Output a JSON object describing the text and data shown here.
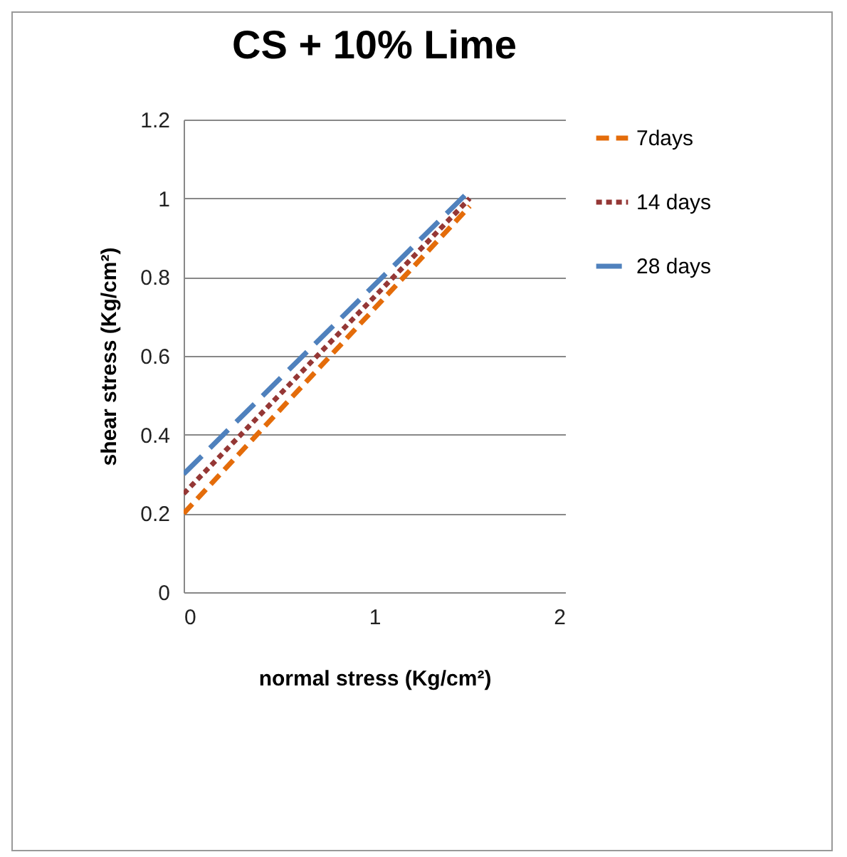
{
  "chart_data": {
    "type": "line",
    "title": "CS + 10% Lime",
    "xlabel": "normal stress (Kg/cm²)",
    "ylabel": "shear stress (Kg/cm²)",
    "xlim": [
      0,
      2
    ],
    "xticks": [
      0,
      1,
      2
    ],
    "ylim": [
      0,
      1.2
    ],
    "yticks": [
      0,
      0.2,
      0.4,
      0.6,
      0.8,
      1,
      1.2
    ],
    "grid": "y",
    "legend": "right",
    "marker": "none",
    "x": [
      0,
      1.5
    ],
    "series": [
      {
        "name": "7days",
        "color": "#e46c0a",
        "values": [
          0.2,
          0.98
        ],
        "line_style": "dashed"
      },
      {
        "name": "14 days",
        "color": "#953735",
        "values": [
          0.25,
          1.0
        ],
        "line_style": "dotted"
      },
      {
        "name": "28 days",
        "color": "#4f81bd",
        "values": [
          0.3,
          1.02
        ],
        "line_style": "dashed"
      }
    ]
  }
}
